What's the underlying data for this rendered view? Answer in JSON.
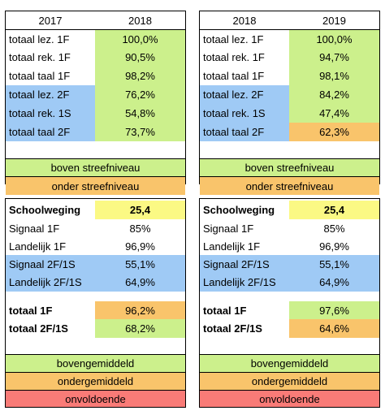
{
  "top_left": {
    "headers": [
      "2017",
      "2018"
    ],
    "rows": [
      {
        "label": "totaal lez. 1F",
        "value": "100,0%"
      },
      {
        "label": "totaal rek. 1F",
        "value": "90,5%"
      },
      {
        "label": "totaal taal 1F",
        "value": "98,2%"
      },
      {
        "label": "totaal lez. 2F",
        "value": "76,2%"
      },
      {
        "label": "totaal rek. 1S",
        "value": "54,8%"
      },
      {
        "label": "totaal taal 2F",
        "value": "73,7%"
      }
    ],
    "legend": [
      "boven streefniveau",
      "onder streefniveau"
    ]
  },
  "top_right": {
    "headers": [
      "2018",
      "2019"
    ],
    "rows": [
      {
        "label": "totaal lez. 1F",
        "value": "100,0%"
      },
      {
        "label": "totaal rek. 1F",
        "value": "94,7%"
      },
      {
        "label": "totaal taal 1F",
        "value": "98,1%"
      },
      {
        "label": "totaal lez. 2F",
        "value": "84,2%"
      },
      {
        "label": "totaal rek. 1S",
        "value": "47,4%"
      },
      {
        "label": "totaal taal 2F",
        "value": "62,3%"
      }
    ],
    "legend": [
      "boven streefniveau",
      "onder streefniveau"
    ]
  },
  "bottom_left": {
    "schoolweging_label": "Schoolweging",
    "schoolweging_value": "25,4",
    "rows": [
      {
        "label": "Signaal 1F",
        "value": "85%"
      },
      {
        "label": "Landelijk 1F",
        "value": "96,9%"
      },
      {
        "label": "Signaal 2F/1S",
        "value": "55,1%"
      },
      {
        "label": "Landelijk 2F/1S",
        "value": "64,9%"
      }
    ],
    "totals": [
      {
        "label": "totaal 1F",
        "value": "96,2%"
      },
      {
        "label": "totaal 2F/1S",
        "value": "68,2%"
      }
    ],
    "legend": [
      "bovengemiddeld",
      "ondergemiddeld",
      "onvoldoende"
    ]
  },
  "bottom_right": {
    "schoolweging_label": "Schoolweging",
    "schoolweging_value": "25,4",
    "rows": [
      {
        "label": "Signaal 1F",
        "value": "85%"
      },
      {
        "label": "Landelijk 1F",
        "value": "96,9%"
      },
      {
        "label": "Signaal 2F/1S",
        "value": "55,1%"
      },
      {
        "label": "Landelijk 2F/1S",
        "value": "64,9%"
      }
    ],
    "totals": [
      {
        "label": "totaal 1F",
        "value": "97,6%"
      },
      {
        "label": "totaal 2F/1S",
        "value": "64,6%"
      }
    ],
    "legend": [
      "bovengemiddeld",
      "ondergemiddeld",
      "onvoldoende"
    ]
  },
  "colors": {
    "green": "#ccf08c",
    "orange": "#f9c46b",
    "blue": "#9fcaf5",
    "yellow": "#fbf984",
    "red": "#f97b77"
  }
}
